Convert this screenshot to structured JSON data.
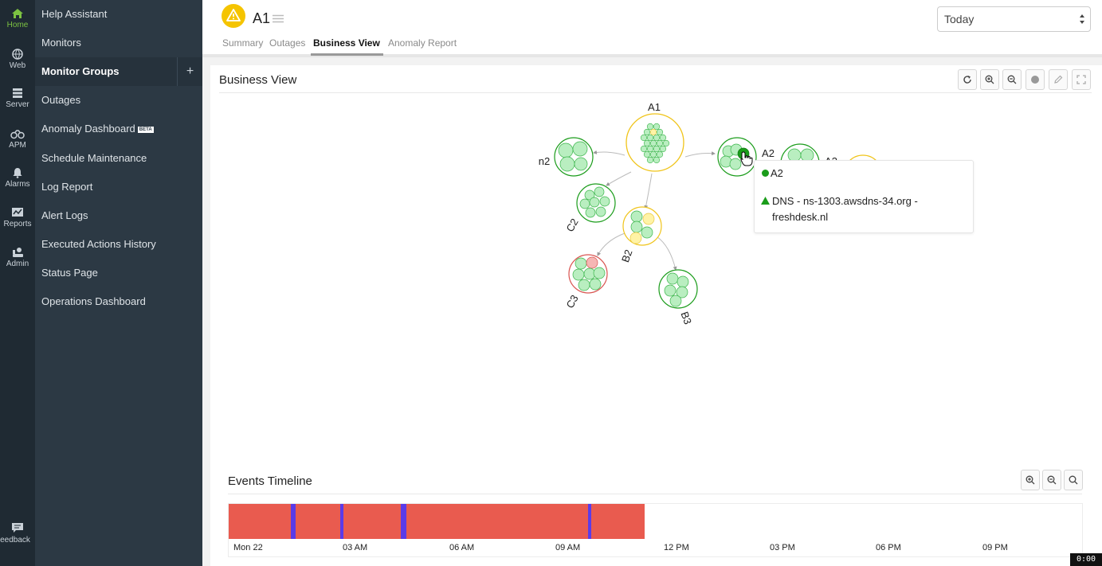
{
  "rail": {
    "items": [
      {
        "label": "Home",
        "icon": "home-icon",
        "active": true
      },
      {
        "label": "Web",
        "icon": "globe-icon"
      },
      {
        "label": "Server",
        "icon": "server-icon"
      },
      {
        "label": "APM",
        "icon": "binoculars-icon"
      },
      {
        "label": "Alarms",
        "icon": "bell-icon"
      },
      {
        "label": "Reports",
        "icon": "chart-icon"
      },
      {
        "label": "Admin",
        "icon": "admin-icon"
      }
    ],
    "feedback_label": "Feedback"
  },
  "menu": {
    "items": [
      {
        "label": "Help Assistant"
      },
      {
        "label": "Monitors"
      },
      {
        "label": "Monitor Groups",
        "active": true,
        "add_label": "+"
      },
      {
        "label": "Outages"
      },
      {
        "label": "Anomaly Dashboard",
        "badge": "BETA"
      },
      {
        "label": "Schedule Maintenance"
      },
      {
        "label": "Log Report"
      },
      {
        "label": "Alert Logs"
      },
      {
        "label": "Executed Actions History"
      },
      {
        "label": "Status Page"
      },
      {
        "label": "Operations Dashboard"
      }
    ]
  },
  "header": {
    "title": "A1",
    "tabs": [
      "Summary",
      "Outages",
      "Business View",
      "Anomaly Report"
    ],
    "active_tab": "Business View",
    "period": "Today"
  },
  "business_view": {
    "title": "Business View",
    "nodes": {
      "a1": "A1",
      "n2": "n2",
      "a2": "A2",
      "a3": "A3",
      "c2": "C2",
      "b2": "B2",
      "c3": "C3",
      "b3": "B3"
    },
    "tooltip": {
      "name": "A2",
      "monitor": "DNS - ns-1303.awsdns-34.org - freshdesk.nl"
    },
    "status_colors": {
      "up": "#1a9c1a",
      "trouble": "#f0c419",
      "down": "#d9534f"
    }
  },
  "events_timeline": {
    "title": "Events Timeline",
    "ticks": [
      "Mon 22",
      "03 AM",
      "06 AM",
      "09 AM",
      "12 PM",
      "03 PM",
      "06 PM",
      "09 PM"
    ],
    "colors": {
      "down": "#e95b4f",
      "maintenance": "#5b3be8"
    }
  },
  "clock": "0:00"
}
